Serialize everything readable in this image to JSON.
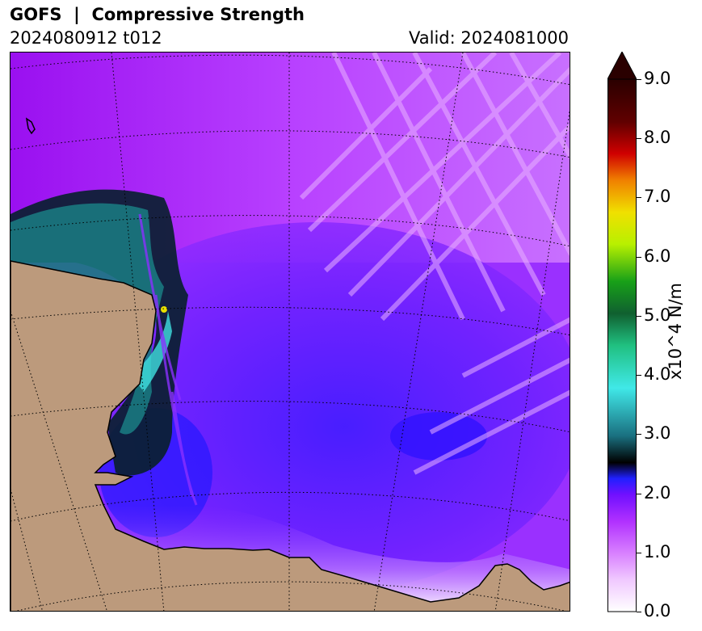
{
  "header": {
    "title": "GOFS  |  Compressive Strength",
    "run": "2024080912 t012",
    "valid": "Valid: 2024081000"
  },
  "colorbar": {
    "label": "x10^4 N/m",
    "ticks": [
      "0.0",
      "1.0",
      "2.0",
      "3.0",
      "4.0",
      "5.0",
      "6.0",
      "7.0",
      "8.0",
      "9.0"
    ],
    "range": [
      0,
      9
    ],
    "extend": "max",
    "colors": {
      "low": "#ffffff",
      "light_magenta": "#e8a0ff",
      "magenta": "#c040ff",
      "purple": "#8020ff",
      "blue": "#1a1aff",
      "black": "#000000",
      "teal": "#1a7080",
      "cyan": "#40e8e8",
      "green": "#18a018",
      "lime": "#b8f000",
      "yellow": "#f0e000",
      "orange": "#f08000",
      "red": "#d00000",
      "dark": "#2a0000"
    }
  },
  "map": {
    "land_color": "#bc9a7c",
    "graticule": "dotted black"
  }
}
